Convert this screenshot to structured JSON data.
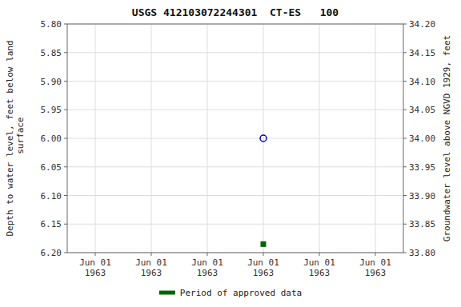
{
  "chart_data": {
    "type": "scatter",
    "title": "USGS 412103072244301  CT-ES   100",
    "y_label": "Depth to water level, feet below land\n surface",
    "y2_label": "Groundwater level above NGVD 1929, feet",
    "categories": [
      "Jun 01\n1963",
      "Jun 01\n1963",
      "Jun 01\n1963",
      "Jun 01\n1963",
      "Jun 01\n1963",
      "Jun 01\n1963"
    ],
    "series": [
      {
        "color": "#0000cc",
        "marker": "circle",
        "values": [
          null,
          null,
          null,
          6.0,
          null,
          null
        ]
      },
      {
        "name": "Period of approved data",
        "color": "#006400",
        "marker": "square",
        "values": [
          null,
          null,
          null,
          6.185,
          null,
          null
        ]
      }
    ],
    "ylim": [
      6.2,
      5.8
    ],
    "yticks": [
      {
        "value": 5.8,
        "label": "5.80"
      },
      {
        "value": 5.85,
        "label": "5.85"
      },
      {
        "value": 5.9,
        "label": "5.90"
      },
      {
        "value": 5.95,
        "label": "5.95"
      },
      {
        "value": 6.0,
        "label": "6.00"
      },
      {
        "value": 6.05,
        "label": "6.05"
      },
      {
        "value": 6.1,
        "label": "6.10"
      },
      {
        "value": 6.15,
        "label": "6.15"
      },
      {
        "value": 6.2,
        "label": "6.20"
      }
    ],
    "y2lim": [
      33.8,
      34.2
    ],
    "y2ticks": [
      {
        "value": 34.2,
        "label": "34.20"
      },
      {
        "value": 34.15,
        "label": "34.15"
      },
      {
        "value": 34.1,
        "label": "34.10"
      },
      {
        "value": 34.05,
        "label": "34.05"
      },
      {
        "value": 34.0,
        "label": "34.00"
      },
      {
        "value": 33.95,
        "label": "33.95"
      },
      {
        "value": 33.9,
        "label": "33.90"
      },
      {
        "value": 33.85,
        "label": "33.85"
      },
      {
        "value": 33.8,
        "label": "33.80"
      }
    ],
    "grid": true,
    "legend": "bottom"
  }
}
